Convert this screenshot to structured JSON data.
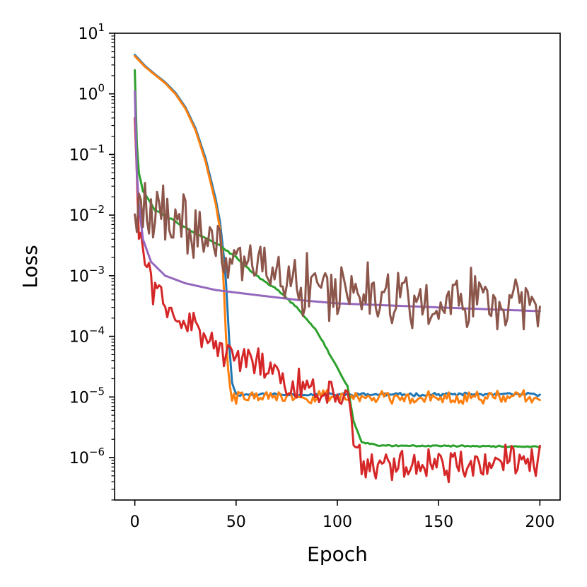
{
  "chart_data": {
    "type": "line",
    "title": "",
    "xlabel": "Epoch",
    "ylabel": "Loss",
    "xscale": "linear",
    "yscale": "log",
    "xlim": [
      -10,
      210
    ],
    "ylim_exp": [
      -6.7,
      1
    ],
    "xticks": [
      {
        "value": 0,
        "label": "0"
      },
      {
        "value": 50,
        "label": "50"
      },
      {
        "value": 100,
        "label": "100"
      },
      {
        "value": 150,
        "label": "150"
      },
      {
        "value": 200,
        "label": "200"
      }
    ],
    "yticks": [
      {
        "exp": 1,
        "base": "10",
        "power": "1"
      },
      {
        "exp": 0,
        "base": "10",
        "power": "0"
      },
      {
        "exp": -1,
        "base": "10",
        "power": "−1"
      },
      {
        "exp": -2,
        "base": "10",
        "power": "−2"
      },
      {
        "exp": -3,
        "base": "10",
        "power": "−3"
      },
      {
        "exp": -4,
        "base": "10",
        "power": "−4"
      },
      {
        "exp": -5,
        "base": "10",
        "power": "−5"
      },
      {
        "exp": -6,
        "base": "10",
        "power": "−6"
      }
    ],
    "grid": false,
    "legend": "none",
    "series": [
      {
        "name": "blue",
        "color": "#1f77b4",
        "style": "smooth",
        "points": [
          [
            0,
            4.4
          ],
          [
            5,
            2.9
          ],
          [
            10,
            2.1
          ],
          [
            15,
            1.55
          ],
          [
            20,
            1.05
          ],
          [
            25,
            0.6
          ],
          [
            30,
            0.27
          ],
          [
            35,
            0.085
          ],
          [
            40,
            0.018
          ],
          [
            42,
            0.008
          ],
          [
            44,
            0.002
          ],
          [
            45,
            0.0008
          ],
          [
            46,
            0.0002
          ],
          [
            47,
            5e-05
          ],
          [
            48,
            1.8e-05
          ],
          [
            50,
            1.1e-05
          ],
          [
            200,
            1.1e-05
          ]
        ],
        "noise_amp": 0.02,
        "noise_from": 48,
        "seed": 11
      },
      {
        "name": "orange",
        "color": "#ff7f0e",
        "style": "smooth",
        "points": [
          [
            0,
            4.2
          ],
          [
            5,
            2.8
          ],
          [
            10,
            2.05
          ],
          [
            15,
            1.5
          ],
          [
            20,
            1.0
          ],
          [
            25,
            0.57
          ],
          [
            30,
            0.25
          ],
          [
            35,
            0.075
          ],
          [
            40,
            0.015
          ],
          [
            42,
            0.006
          ],
          [
            43,
            0.0025
          ],
          [
            44,
            0.0006
          ],
          [
            45,
            0.0001
          ],
          [
            46,
            3e-05
          ],
          [
            47,
            1.5e-05
          ],
          [
            48,
            1e-05
          ],
          [
            200,
            1e-05
          ]
        ],
        "noise_amp": 0.08,
        "noise_from": 48,
        "seed": 22
      },
      {
        "name": "green",
        "color": "#2ca02c",
        "style": "smooth",
        "points": [
          [
            0,
            2.5
          ],
          [
            1,
            0.15
          ],
          [
            2,
            0.05
          ],
          [
            4,
            0.025
          ],
          [
            10,
            0.012
          ],
          [
            20,
            0.008
          ],
          [
            30,
            0.005
          ],
          [
            40,
            0.0035
          ],
          [
            50,
            0.002
          ],
          [
            60,
            0.001
          ],
          [
            70,
            0.0006
          ],
          [
            80,
            0.0003
          ],
          [
            90,
            0.00012
          ],
          [
            100,
            3e-05
          ],
          [
            105,
            1.5e-05
          ],
          [
            108,
            4e-06
          ],
          [
            112,
            1.8e-06
          ],
          [
            120,
            1.6e-06
          ],
          [
            200,
            1.5e-06
          ]
        ],
        "noise_amp": 0.01,
        "noise_from": 0,
        "seed": 33
      },
      {
        "name": "red",
        "color": "#d62728",
        "style": "noisy",
        "points": [
          [
            0,
            0.4
          ],
          [
            2,
            0.006
          ],
          [
            5,
            0.0014
          ],
          [
            10,
            0.0006
          ],
          [
            20,
            0.00025
          ],
          [
            40,
            7e-05
          ],
          [
            60,
            3e-05
          ],
          [
            80,
            1.5e-05
          ],
          [
            100,
            1.2e-05
          ],
          [
            105,
            8e-06
          ],
          [
            108,
            1.5e-06
          ],
          [
            115,
            7e-07
          ],
          [
            130,
            8e-07
          ],
          [
            160,
            8e-07
          ],
          [
            200,
            8e-07
          ]
        ],
        "noise_amp": 0.22,
        "noise_from": 2,
        "seed": 44
      },
      {
        "name": "purple",
        "color": "#9467bd",
        "style": "smooth",
        "points": [
          [
            0,
            1.1
          ],
          [
            1,
            0.05
          ],
          [
            2,
            0.015
          ],
          [
            4,
            0.004
          ],
          [
            8,
            0.0017
          ],
          [
            15,
            0.001
          ],
          [
            25,
            0.00075
          ],
          [
            40,
            0.00058
          ],
          [
            60,
            0.00048
          ],
          [
            80,
            0.0004
          ],
          [
            100,
            0.00035
          ],
          [
            150,
            0.0003
          ],
          [
            200,
            0.00026
          ]
        ],
        "noise_amp": 0.0,
        "noise_from": 0,
        "seed": 55
      },
      {
        "name": "brown",
        "color": "#8c564b",
        "style": "noisy",
        "points": [
          [
            0,
            0.02
          ],
          [
            5,
            0.014
          ],
          [
            10,
            0.012
          ],
          [
            20,
            0.008
          ],
          [
            30,
            0.005
          ],
          [
            40,
            0.003
          ],
          [
            50,
            0.002
          ],
          [
            70,
            0.001
          ],
          [
            100,
            0.0006
          ],
          [
            150,
            0.0004
          ],
          [
            200,
            0.00035
          ]
        ],
        "noise_amp": 0.38,
        "noise_from": 0,
        "seed": 66
      }
    ]
  }
}
